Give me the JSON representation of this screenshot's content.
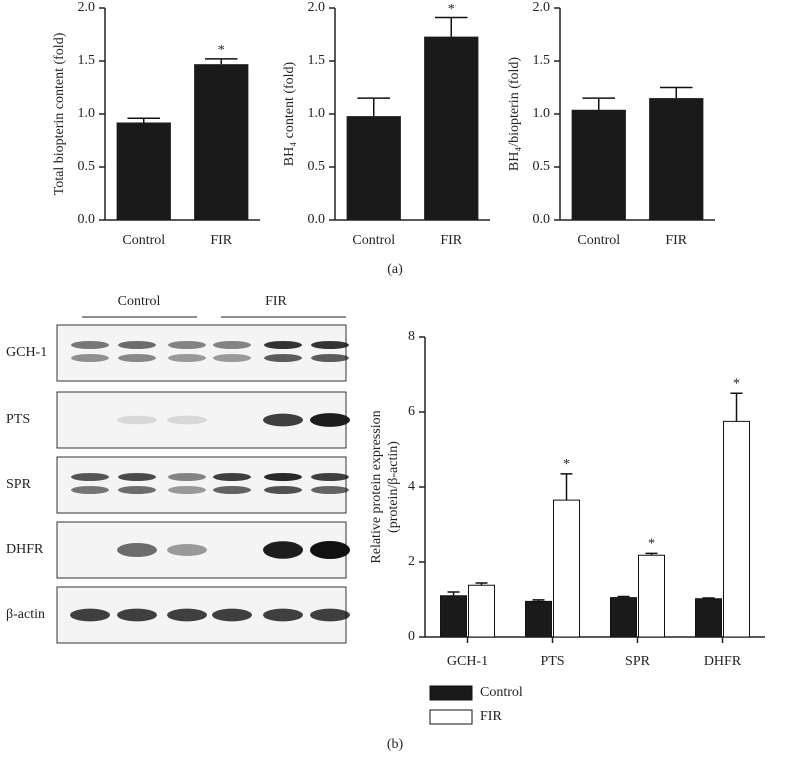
{
  "chart_data": [
    {
      "type": "bar",
      "ylabel": "Total biopterin content (fold)",
      "categories": [
        "Control",
        "FIR"
      ],
      "values": [
        0.92,
        1.47
      ],
      "errors": [
        0.04,
        0.05
      ],
      "annotations": [
        null,
        "*"
      ],
      "color": "#1a1a1a",
      "ylim": [
        0,
        2
      ],
      "yticks": [
        {
          "value": 0,
          "label": "0.0"
        },
        0.5,
        {
          "value": 1,
          "label": "1.0"
        },
        1.5,
        {
          "value": 2,
          "label": "2.0"
        }
      ]
    },
    {
      "type": "bar",
      "ylabel": "BH₄ content (fold)",
      "categories": [
        "Control",
        "FIR"
      ],
      "values": [
        0.98,
        1.73
      ],
      "errors": [
        0.17,
        0.18
      ],
      "annotations": [
        null,
        "*"
      ],
      "color": "#1a1a1a",
      "ylim": [
        0,
        2
      ],
      "yticks": [
        {
          "value": 0,
          "label": "0.0"
        },
        0.5,
        {
          "value": 1,
          "label": "1.0"
        },
        1.5,
        {
          "value": 2,
          "label": "2.0"
        }
      ]
    },
    {
      "type": "bar",
      "ylabel": "BH₄/biopterin (fold)",
      "categories": [
        "Control",
        "FIR"
      ],
      "values": [
        1.04,
        1.15
      ],
      "errors": [
        0.11,
        0.1
      ],
      "color": "#1a1a1a",
      "ylim": [
        0,
        2
      ],
      "yticks": [
        {
          "value": 0,
          "label": "0.0"
        },
        0.5,
        {
          "value": 1,
          "label": "1.0"
        },
        1.5,
        {
          "value": 2,
          "label": "2.0"
        }
      ]
    },
    {
      "type": "grouped_bar",
      "ylabel": [
        "Relative protein expression",
        "(protein/β-actin)"
      ],
      "categories": [
        "GCH-1",
        "PTS",
        "SPR",
        "DHFR"
      ],
      "series": [
        {
          "name": "Control",
          "color": "#1a1a1a",
          "values": [
            1.1,
            0.95,
            1.05,
            1.02
          ],
          "errors": [
            0.1,
            0.04,
            0.03,
            0.02
          ]
        },
        {
          "name": "FIR",
          "color": "#ffffff",
          "values": [
            1.38,
            3.65,
            2.18,
            5.75
          ],
          "errors": [
            0.06,
            0.7,
            0.05,
            0.75
          ],
          "annotations": [
            null,
            "*",
            "*",
            "*"
          ]
        }
      ],
      "ylim": [
        0,
        8
      ],
      "yticks": [
        0,
        2,
        4,
        6,
        8
      ],
      "legend": "bottom"
    }
  ],
  "blot": {
    "groups": [
      "Control",
      "FIR"
    ],
    "rows": [
      "GCH-1",
      "PTS",
      "SPR",
      "DHFR",
      "β-actin"
    ]
  },
  "panel_labels": [
    "(a)",
    "(b)"
  ]
}
